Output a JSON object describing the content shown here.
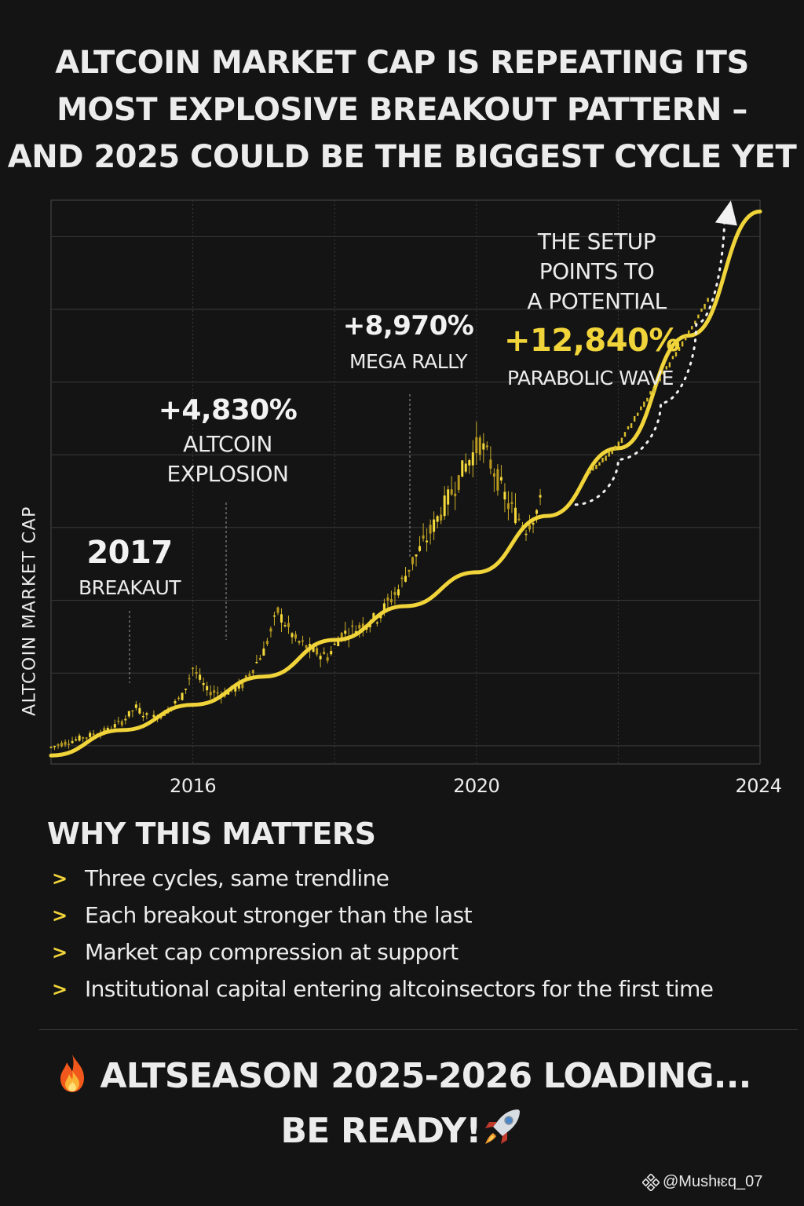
{
  "headline": {
    "line1": "ALTCOIN MARKET CAP IS REPEATING ITS",
    "line2": "MOST EXPLOSIVE BREAKOUT PATTERN –",
    "line3": "AND 2025 COULD BE THE BIGGEST CYCLE YET"
  },
  "chart_data": {
    "type": "line",
    "title": "",
    "ylabel": "ALTCOIN MARKET CAP",
    "xlabel": "",
    "x_ticks": [
      "2016",
      "2020",
      "2024"
    ],
    "xlim": [
      2014,
      2024
    ],
    "ylim": [
      0,
      100
    ],
    "grid": true,
    "y_tick_labels": false,
    "price_series": {
      "name": "",
      "x": [
        2014.0,
        2014.4,
        2014.8,
        2015.0,
        2015.2,
        2015.4,
        2015.6,
        2015.85,
        2016.0,
        2016.2,
        2016.45,
        2016.7,
        2017.0,
        2017.2,
        2017.45,
        2017.7,
        2017.9,
        2018.1,
        2018.3,
        2018.6,
        2018.9,
        2019.1,
        2019.3,
        2019.6,
        2019.85,
        2020.05,
        2020.25,
        2020.45,
        2020.7,
        2020.9
      ],
      "y": [
        3,
        4.5,
        6,
        7.5,
        10,
        8,
        9,
        12,
        17,
        13,
        12.5,
        14,
        20,
        27,
        22,
        20,
        19,
        23,
        24,
        26,
        31,
        36,
        40,
        47,
        53,
        57,
        52,
        46,
        42,
        46
      ]
    },
    "trendline": {
      "name": "",
      "x": [
        2014.0,
        2015.0,
        2016.0,
        2017.0,
        2018.0,
        2019.0,
        2020.0,
        2021.0,
        2022.0,
        2023.0,
        2024.0
      ],
      "y": [
        1.5,
        6,
        10.5,
        15.5,
        22,
        28,
        34,
        44,
        56,
        76,
        98
      ]
    },
    "projection": {
      "name": "",
      "x": [
        2021.4,
        2022.0,
        2022.6,
        2023.1,
        2023.5
      ],
      "y": [
        46,
        54,
        64,
        78,
        98
      ]
    },
    "annotations": [
      {
        "id": "a2017",
        "x": 2015.0,
        "y": 11.5,
        "big": "2017",
        "small": [
          "BREAKAUT"
        ]
      },
      {
        "id": "a4830",
        "x": 2016.4,
        "y": 17,
        "big": "+4,830%",
        "small": [
          "ALTCOIN",
          "EXPLOSION"
        ]
      },
      {
        "id": "a8970",
        "x": 2019.1,
        "y": 29,
        "big": "+8,970%",
        "small": [
          "MEGA RALLY"
        ]
      },
      {
        "id": "a12840",
        "x": 2022.0,
        "y": 0,
        "pre": [
          "THE SETUP",
          "POINTS TO",
          "A POTENTIAL"
        ],
        "big": "+12,840%",
        "small": [
          "PARABOLIC WAVE"
        ]
      }
    ]
  },
  "why": {
    "title": "WHY THIS MATTERS",
    "items": [
      "Three cycles, same trendline",
      "Each breakout stronger than  the last",
      "Market cap compression at support",
      "Institutional capital entering altcoinsectors for the first time"
    ]
  },
  "cta": {
    "line1": "ALTSEASON 2025-2026 LOADING...",
    "line2": "BE READY!"
  },
  "watermark": "@Mushᵻɛq_07",
  "colors": {
    "background": "#141414",
    "accent": "#f0d43a",
    "text": "#ececec",
    "grid": "#3a3a3a"
  }
}
